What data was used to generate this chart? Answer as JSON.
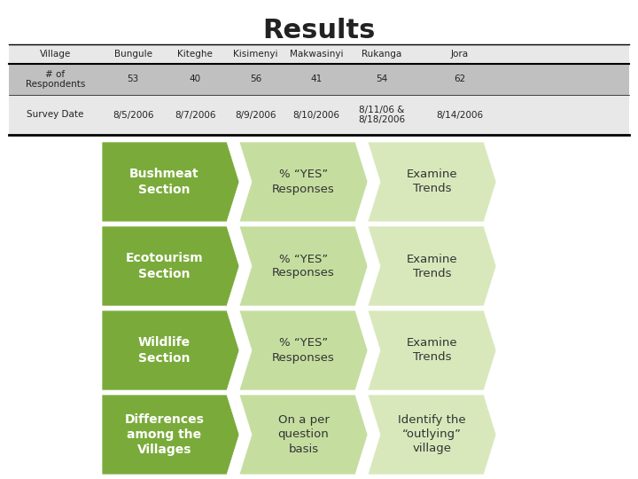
{
  "title": "Results",
  "title_fontsize": 22,
  "background_color": "#ffffff",
  "table": {
    "headers": [
      "Village",
      "Bungule",
      "Kiteghe",
      "Kisimenyi",
      "Makwasinyi",
      "Rukanga",
      "Jora"
    ],
    "row1_label": "# of\nRespondents",
    "row1_values": [
      "53",
      "40",
      "56",
      "41",
      "54",
      "62"
    ],
    "row2_label": "Survey Date",
    "row2_values": [
      "8/5/2006",
      "8/7/2006",
      "8/9/2006",
      "8/10/2006",
      "8/11/06 &\n8/18/2006",
      "8/14/2006"
    ],
    "row1_bg": "#c0c0c0",
    "row2_bg": "#e8e8e8",
    "header_bg": "#e8e8e8"
  },
  "arrows": [
    {
      "label1": "Bushmeat\nSection",
      "label2": "% “YES”\nResponses",
      "label3": "Examine\nTrends",
      "color1": "#7aab3a",
      "color2": "#c5dea0",
      "color3": "#d8e8bb"
    },
    {
      "label1": "Ecotourism\nSection",
      "label2": "% “YES”\nResponses",
      "label3": "Examine\nTrends",
      "color1": "#7aab3a",
      "color2": "#c5dea0",
      "color3": "#d8e8bb"
    },
    {
      "label1": "Wildlife\nSection",
      "label2": "% “YES”\nResponses",
      "label3": "Examine\nTrends",
      "color1": "#7aab3a",
      "color2": "#c5dea0",
      "color3": "#d8e8bb"
    },
    {
      "label1": "Differences\namong the\nVillages",
      "label2": "On a per\nquestion\nbasis",
      "label3": "Identify the\n“outlying”\nvillage",
      "color1": "#7aab3a",
      "color2": "#c5dea0",
      "color3": "#d8e8bb"
    }
  ],
  "arrow_text_color1": "#ffffff",
  "arrow_text_color2": "#333333",
  "arrow_fontsize": 10
}
